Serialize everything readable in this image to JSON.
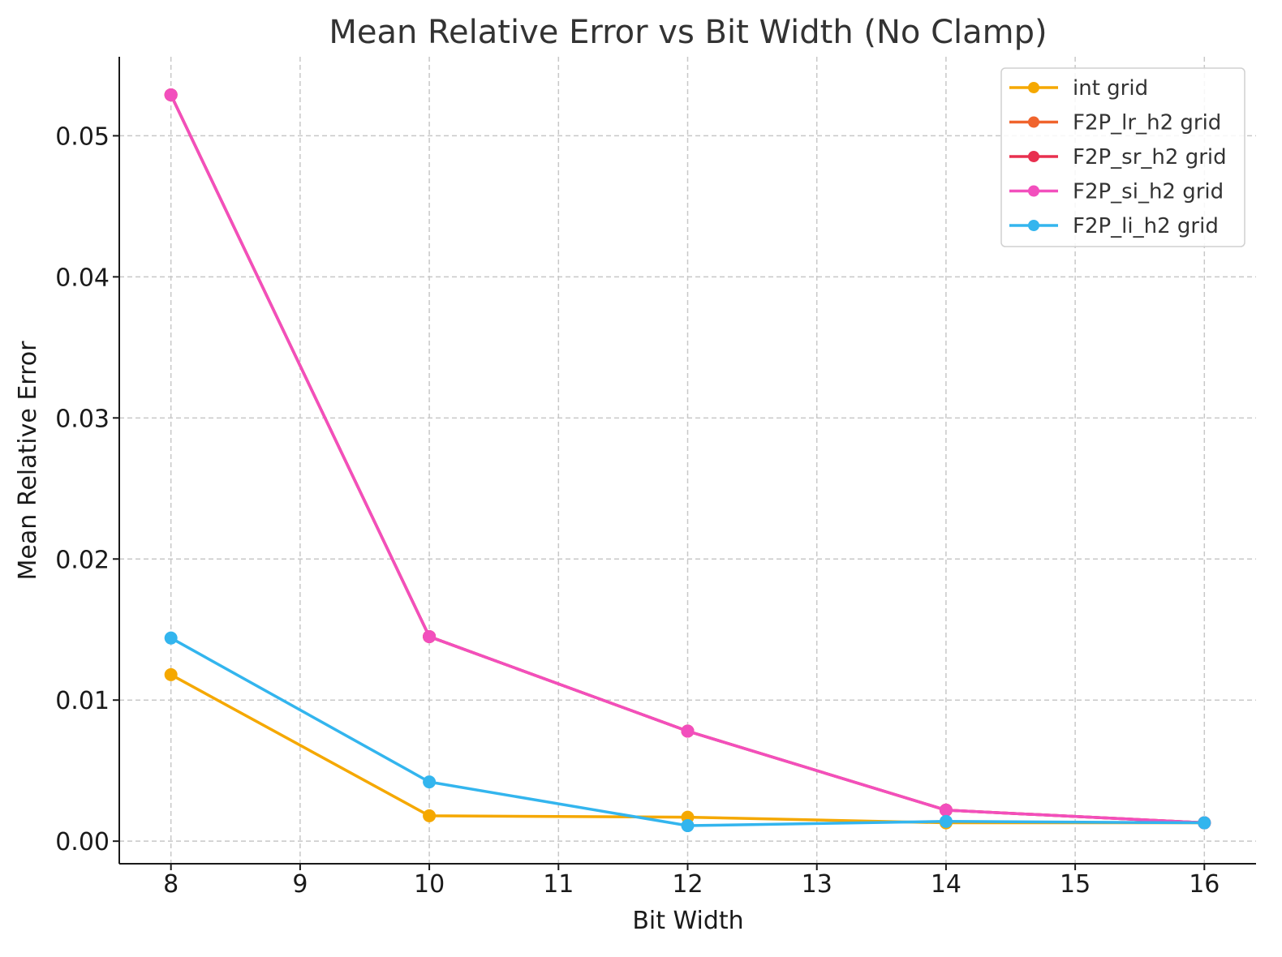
{
  "chart_data": {
    "type": "line",
    "title": "Mean Relative Error vs Bit Width (No Clamp)",
    "xlabel": "Bit Width",
    "ylabel": "Mean Relative Error",
    "x": [
      8,
      10,
      12,
      14,
      16
    ],
    "xlim": [
      7.6,
      16.4
    ],
    "ylim": [
      -0.0016,
      0.0556
    ],
    "xticks": [
      "8",
      "9",
      "10",
      "11",
      "12",
      "13",
      "14",
      "15",
      "16"
    ],
    "yticks": [
      "0.00",
      "0.01",
      "0.02",
      "0.03",
      "0.04",
      "0.05"
    ],
    "grid": true,
    "legend_position": "top-right",
    "series": [
      {
        "name": "int grid",
        "color": "#f5a800",
        "values": [
          0.0118,
          0.0018,
          0.0017,
          0.0013,
          0.0013
        ]
      },
      {
        "name": "F2P_lr_h2 grid",
        "color": "#f0642d",
        "values": [
          0.0529,
          0.0145,
          0.0078,
          0.0022,
          0.0013
        ]
      },
      {
        "name": "F2P_sr_h2 grid",
        "color": "#e8304f",
        "values": [
          0.0529,
          0.0145,
          0.0078,
          0.0022,
          0.0013
        ]
      },
      {
        "name": "F2P_si_h2 grid",
        "color": "#f24fbd",
        "values": [
          0.0529,
          0.0145,
          0.0078,
          0.0022,
          0.0013
        ]
      },
      {
        "name": "F2P_li_h2 grid",
        "color": "#33b5ee",
        "values": [
          0.0144,
          0.0042,
          0.0011,
          0.0014,
          0.0013
        ]
      }
    ]
  }
}
